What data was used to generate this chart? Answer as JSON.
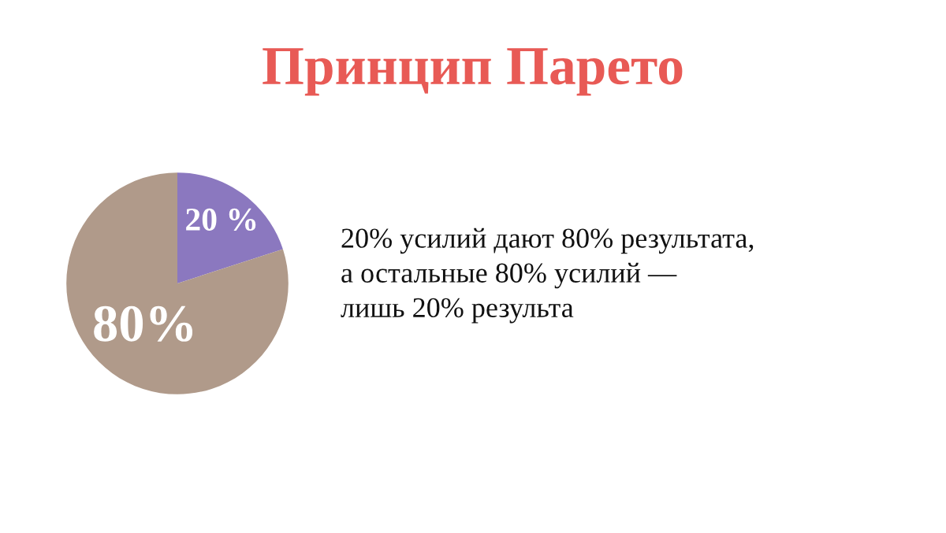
{
  "chart_data": {
    "type": "pie",
    "title": "Принцип Парето",
    "categories": [
      null,
      null
    ],
    "values": [
      20,
      80
    ],
    "colors": [
      "#8b78bf",
      "#b09a8a"
    ],
    "value_labels": [
      "20 %",
      "80%"
    ],
    "annotations": [
      "20% усилий дают 80% результата,\nа остальные 80% усилий —\nлишь 20% результа"
    ]
  }
}
